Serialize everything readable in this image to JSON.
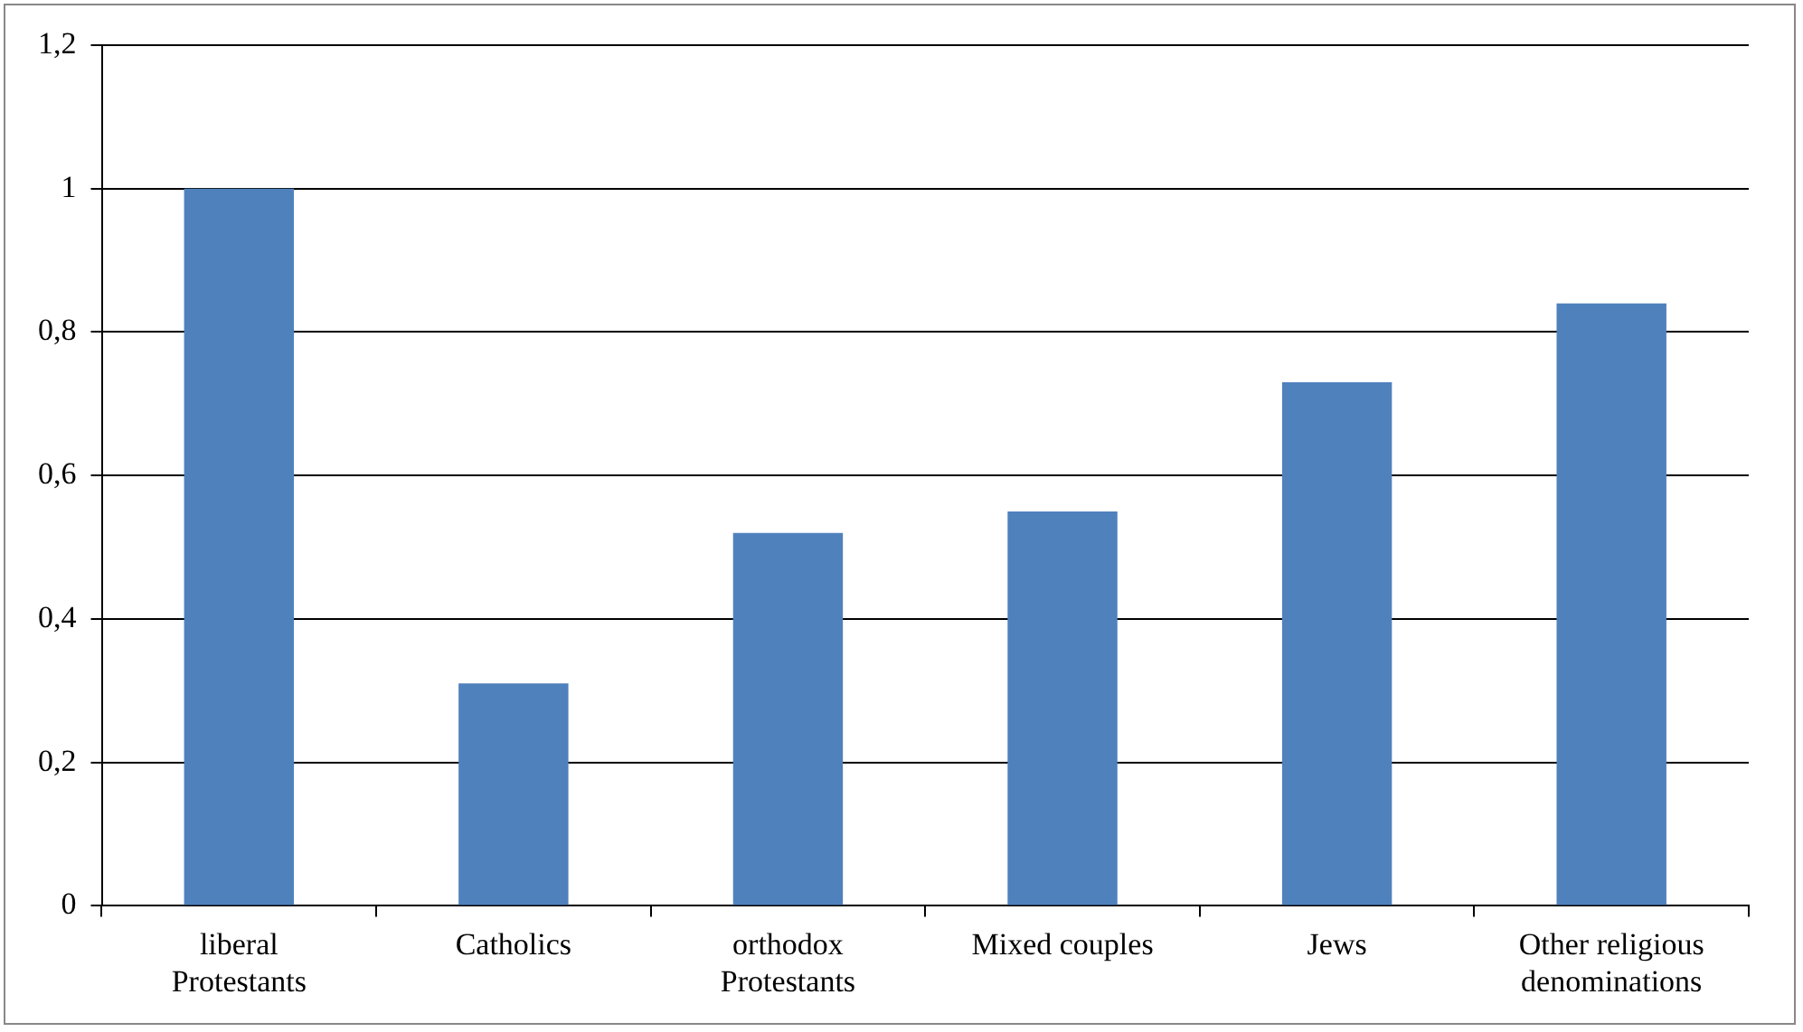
{
  "chart_data": {
    "type": "bar",
    "categories": [
      "liberal\nProtestants",
      "Catholics",
      "orthodox\nProtestants",
      "Mixed couples",
      "Jews",
      "Other religious\ndenominations"
    ],
    "values": [
      1.0,
      0.31,
      0.52,
      0.55,
      0.73,
      0.84
    ],
    "color": "#4f81bd",
    "ylim": [
      0,
      1.2
    ],
    "yticks": [
      0,
      {
        "value": 0.2,
        "label": "0,2"
      },
      {
        "value": 0.4,
        "label": "0,4"
      },
      {
        "value": 0.6,
        "label": "0,6"
      },
      {
        "value": 0.8,
        "label": "0,8"
      },
      1,
      {
        "value": 1.2,
        "label": "1,2"
      }
    ],
    "grid": "y",
    "legend": false
  }
}
